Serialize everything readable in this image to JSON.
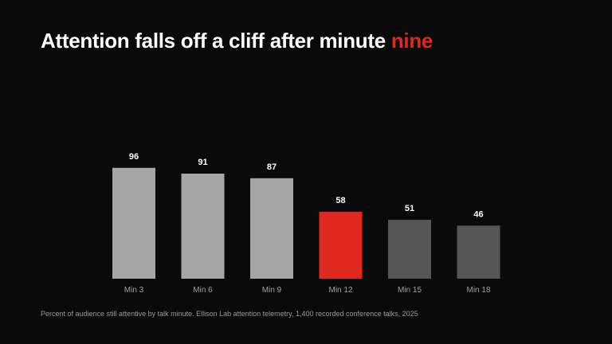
{
  "slide": {
    "title_main": "Attention falls off a cliff after minute ",
    "title_accent": "nine",
    "caption": "Percent of audience still attentive by talk minute. Ellison Lab attention telemetry, 1,400 recorded conference talks, 2025"
  },
  "colors": {
    "background": "#0a0a0a",
    "accent": "#e0281e",
    "bar_before": "#a6a6a6",
    "bar_after": "#555555"
  },
  "chart_data": {
    "type": "bar",
    "categories": [
      "Min 3",
      "Min 6",
      "Min 9",
      "Min 12",
      "Min 15",
      "Min 18"
    ],
    "values": [
      96,
      91,
      87,
      58,
      51,
      46
    ],
    "highlight_index": 3,
    "ylim": [
      0,
      100
    ],
    "grid": false,
    "legend": "none"
  }
}
